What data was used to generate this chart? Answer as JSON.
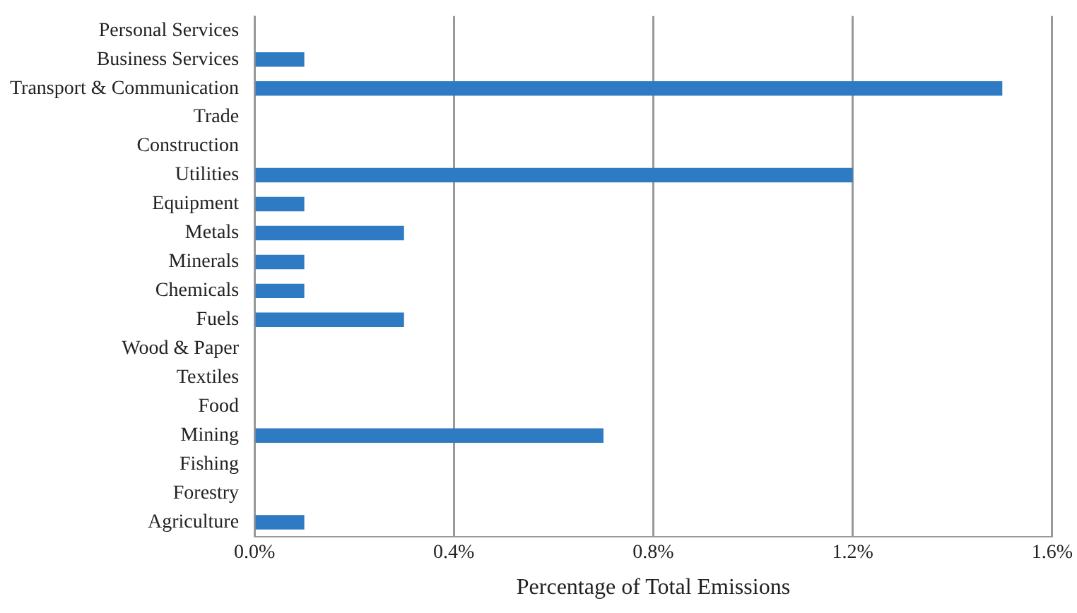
{
  "chart_data": {
    "type": "bar",
    "orientation": "horizontal",
    "xlabel": "Percentage of Total Emissions",
    "categories": [
      "Personal Services",
      "Business Services",
      "Transport & Communication",
      "Trade",
      "Construction",
      "Utilities",
      "Equipment",
      "Metals",
      "Minerals",
      "Chemicals",
      "Fuels",
      "Wood & Paper",
      "Textiles",
      "Food",
      "Mining",
      "Fishing",
      "Forestry",
      "Agriculture"
    ],
    "values": [
      0,
      0.1,
      1.5,
      0,
      0,
      1.2,
      0.1,
      0.3,
      0.1,
      0.1,
      0.3,
      0,
      0,
      0,
      0.7,
      0,
      0,
      0.1
    ],
    "color": "#2e7bc4",
    "xlim": [
      0,
      1.6
    ],
    "xticks": [
      {
        "value": 0,
        "label": "0.0%"
      },
      {
        "value": 0.4,
        "label": "0.4%"
      },
      {
        "value": 0.8,
        "label": "0.8%"
      },
      {
        "value": 1.2,
        "label": "1.2%"
      },
      {
        "value": 1.6,
        "label": "1.6%"
      }
    ],
    "grid": "x",
    "legend": false
  }
}
